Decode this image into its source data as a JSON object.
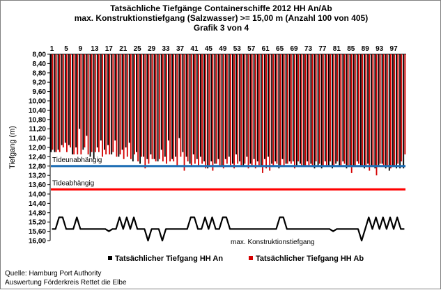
{
  "chart_data": {
    "type": "bar",
    "title_lines": [
      "Tatsächliche Tiefgänge Containerschiffe  2012 HH An/Ab",
      "max. Konstruktionstiefgang  (Salzwasser)  >= 15,00 m (Anzahl 100 von 405)",
      "Grafik 3 von 4"
    ],
    "ylabel": "Tiefgang (m)",
    "ylim": [
      8.0,
      16.0
    ],
    "y_inverted": true,
    "yticks": [
      "8,00",
      "8,40",
      "8,80",
      "9,20",
      "9,60",
      "10,00",
      "10,40",
      "10,80",
      "11,20",
      "11,60",
      "12,00",
      "12,40",
      "12,80",
      "13,20",
      "13,60",
      "14,00",
      "14,40",
      "14,80",
      "15,20",
      "15,60",
      "16,00"
    ],
    "xticks": [
      "1",
      "5",
      "9",
      "13",
      "17",
      "21",
      "25",
      "29",
      "33",
      "37",
      "41",
      "45",
      "49",
      "53",
      "57",
      "61",
      "65",
      "69",
      "73",
      "77",
      "81",
      "85",
      "89",
      "93",
      "97"
    ],
    "n_ships": 100,
    "series": [
      {
        "name": "Tatsächlicher Tiefgang HH An",
        "color": "#000000",
        "values": [
          12.2,
          12.2,
          12.1,
          11.9,
          11.8,
          11.9,
          12.3,
          12.0,
          11.2,
          12.1,
          11.5,
          12.4,
          12.5,
          12.0,
          11.7,
          12.1,
          11.9,
          12.3,
          11.7,
          12.4,
          12.1,
          12.0,
          11.8,
          12.6,
          12.2,
          12.7,
          12.4,
          12.5,
          12.3,
          12.5,
          12.6,
          12.1,
          12.4,
          11.7,
          12.5,
          12.4,
          11.6,
          12.2,
          12.4,
          12.7,
          12.3,
          12.5,
          12.4,
          12.6,
          12.9,
          12.6,
          12.7,
          12.5,
          12.8,
          12.5,
          12.4,
          12.7,
          12.3,
          12.6,
          12.8,
          12.4,
          12.7,
          12.5,
          12.6,
          12.8,
          12.5,
          12.4,
          12.7,
          12.6,
          12.9,
          12.5,
          12.7,
          12.6,
          12.6,
          12.8,
          12.7,
          12.8,
          12.6,
          12.7,
          12.9,
          12.8,
          12.9,
          12.6,
          12.8,
          12.9,
          12.7,
          12.8,
          12.6,
          12.9,
          12.8,
          12.8,
          12.6,
          12.8,
          12.9,
          12.7,
          12.8,
          12.9,
          12.8,
          12.7,
          12.9,
          13.0,
          12.8,
          12.9,
          12.9,
          12.9
        ]
      },
      {
        "name": "Tatsächlicher Tiefgang HH Ab",
        "color": "#d40000",
        "values": [
          12.1,
          12.2,
          12.2,
          12.0,
          12.2,
          12.0,
          12.3,
          12.3,
          12.3,
          12.0,
          12.3,
          12.2,
          12.2,
          12.2,
          12.4,
          12.3,
          12.3,
          12.2,
          12.4,
          12.3,
          12.5,
          12.4,
          12.5,
          12.3,
          12.6,
          12.4,
          12.9,
          12.7,
          12.5,
          12.6,
          12.5,
          12.6,
          12.7,
          12.6,
          12.6,
          12.8,
          12.4,
          13.0,
          12.6,
          12.8,
          12.7,
          12.8,
          12.7,
          12.9,
          12.8,
          13.0,
          12.7,
          12.8,
          12.9,
          12.7,
          12.8,
          12.9,
          12.7,
          12.8,
          12.7,
          12.9,
          12.8,
          12.9,
          12.8,
          13.1,
          12.9,
          13.0,
          12.8,
          12.7,
          12.8,
          12.8,
          12.7,
          12.7,
          12.9,
          12.6,
          12.8,
          12.8,
          12.8,
          12.8,
          12.6,
          12.7,
          12.8,
          12.8,
          12.6,
          12.8,
          12.6,
          12.8,
          12.7,
          12.8,
          13.1,
          12.8,
          12.7,
          12.8,
          12.8,
          13.0,
          12.8,
          13.2,
          12.7,
          12.8,
          12.8,
          12.9,
          12.8,
          12.7,
          12.6,
          12.3
        ]
      }
    ],
    "reference_lines": [
      {
        "label": "Tideunabhängig",
        "value": 12.8,
        "color": "#1f6fb5"
      },
      {
        "label": "Tideabhängig",
        "value": 13.8,
        "color": "#ff0000"
      }
    ],
    "design_draft": {
      "label": "max. Konstruktionstiefgang",
      "color": "#000000",
      "values": [
        15.5,
        15.5,
        15.0,
        15.0,
        15.5,
        15.5,
        15.5,
        15.0,
        15.5,
        15.5,
        15.5,
        15.5,
        15.5,
        15.5,
        15.5,
        15.5,
        15.6,
        15.5,
        15.5,
        15.0,
        15.5,
        15.0,
        15.5,
        15.0,
        15.5,
        15.5,
        15.5,
        16.0,
        15.5,
        15.5,
        15.5,
        16.0,
        15.5,
        15.5,
        15.5,
        15.5,
        15.5,
        15.5,
        15.5,
        15.0,
        15.0,
        15.5,
        15.5,
        15.0,
        15.5,
        15.0,
        15.5,
        15.5,
        15.0,
        15.0,
        15.5,
        15.5,
        15.5,
        15.5,
        15.5,
        15.5,
        15.5,
        15.5,
        15.5,
        15.5,
        15.5,
        15.5,
        15.5,
        15.5,
        15.0,
        15.0,
        15.5,
        15.5,
        15.5,
        15.5,
        15.5,
        15.5,
        15.5,
        15.5,
        15.5,
        15.5,
        15.5,
        15.5,
        15.5,
        15.6,
        15.5,
        15.5,
        15.5,
        15.5,
        15.5,
        15.5,
        15.5,
        16.0,
        15.5,
        15.0,
        15.5,
        15.0,
        15.5,
        15.0,
        15.5,
        15.0,
        15.5,
        15.0,
        15.5,
        15.5
      ]
    },
    "grid": false,
    "legend_position": "bottom"
  },
  "source_lines": [
    "Quelle: Hamburg Port Authority",
    "Auswertung Förderkreis Rettet die Elbe"
  ]
}
